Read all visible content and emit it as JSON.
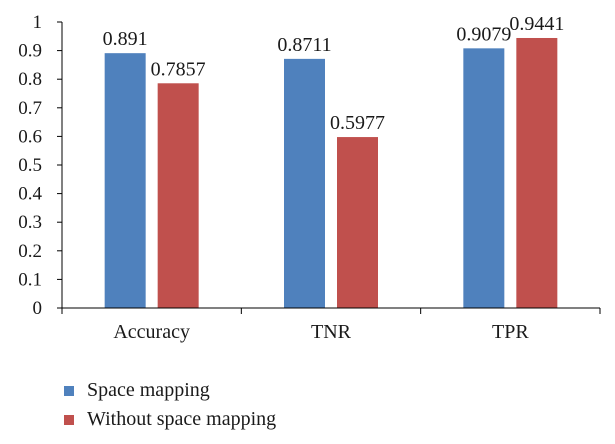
{
  "chart_data": {
    "type": "bar",
    "categories": [
      "Accuracy",
      "TNR",
      "TPR"
    ],
    "series": [
      {
        "name": "Space mapping",
        "color": "#4f81bd",
        "values": [
          0.891,
          0.8711,
          0.9079
        ],
        "labels": [
          "0.891",
          "0.8711",
          "0.9079"
        ]
      },
      {
        "name": "Without space mapping",
        "color": "#c0504d",
        "values": [
          0.7857,
          0.5977,
          0.9441
        ],
        "labels": [
          "0.7857",
          "0.5977",
          "0.9441"
        ]
      }
    ],
    "ylim": [
      0,
      1
    ],
    "yticks": [
      "0",
      "0.1",
      "0.2",
      "0.3",
      "0.4",
      "0.5",
      "0.6",
      "0.7",
      "0.8",
      "0.9",
      "1"
    ],
    "title": "",
    "xlabel": "",
    "ylabel": "",
    "grid": false,
    "legend_position": "bottom-left"
  }
}
